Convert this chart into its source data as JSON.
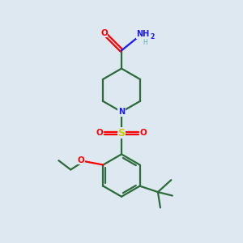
{
  "bg_color": "#dde8f0",
  "bond_color": "#2d6b3a",
  "N_color": "#1a1aff",
  "O_color": "#ff0000",
  "S_color": "#cccc00",
  "H_color": "#5aabab",
  "line_width": 1.6,
  "figsize": [
    3.0,
    3.0
  ],
  "dpi": 100,
  "xlim": [
    0,
    10
  ],
  "ylim": [
    0,
    10
  ]
}
